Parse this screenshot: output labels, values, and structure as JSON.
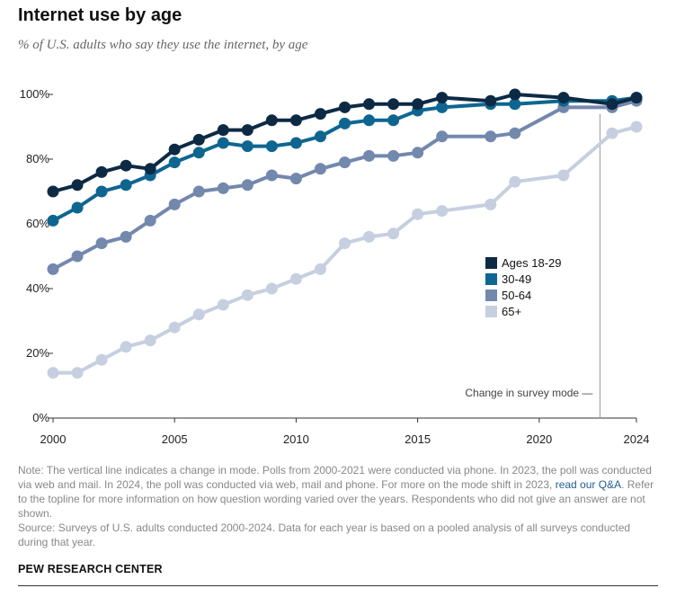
{
  "title": "Internet use by age",
  "subtitle": "% of U.S. adults who say they use the internet, by age",
  "note": {
    "text_before_link": "Note: The vertical line indicates a change in mode. Polls from 2000-2021 were conducted via phone. In 2023, the poll was conducted via web and mail. In 2024, the poll was conducted via web, mail and phone. For more on the mode shift in 2023,",
    "link_text": "read our Q&A",
    "text_after_link": ". Refer to the topline for more information on how question wording varied over the years. Respondents who did not give an answer are not shown."
  },
  "source": "Source: Surveys of U.S. adults conducted 2000-2024. Data for each year is based on a pooled analysis of all surveys conducted during that year.",
  "brand": "PEW RESEARCH CENTER",
  "chart_data": {
    "type": "line",
    "title": "Internet use by age",
    "subtitle": "% of U.S. adults who say they use the internet, by age",
    "xlabel": "",
    "ylabel": "",
    "xlim": [
      2000,
      2024
    ],
    "ylim": [
      0,
      100
    ],
    "x_ticks": [
      2000,
      2005,
      2010,
      2015,
      2020,
      2024
    ],
    "y_ticks": [
      0,
      20,
      40,
      60,
      80,
      100
    ],
    "y_tick_labels": [
      "0%",
      "20%",
      "40%",
      "60%",
      "80%",
      "100%"
    ],
    "grid": false,
    "legend_position": "right",
    "annotation": {
      "label": "Change in survey mode",
      "x": 2022.5
    },
    "series": [
      {
        "name": "Ages 18-29",
        "color": "#0d2a45",
        "points": [
          [
            2000,
            70
          ],
          [
            2001,
            72
          ],
          [
            2002,
            76
          ],
          [
            2003,
            78
          ],
          [
            2004,
            77
          ],
          [
            2005,
            83
          ],
          [
            2006,
            86
          ],
          [
            2007,
            89
          ],
          [
            2008,
            89
          ],
          [
            2009,
            92
          ],
          [
            2010,
            92
          ],
          [
            2011,
            94
          ],
          [
            2012,
            96
          ],
          [
            2013,
            97
          ],
          [
            2014,
            97
          ],
          [
            2015,
            97
          ],
          [
            2016,
            99
          ],
          [
            2018,
            98
          ],
          [
            2019,
            100
          ],
          [
            2021,
            99
          ],
          [
            2023,
            97
          ],
          [
            2024,
            99
          ]
        ]
      },
      {
        "name": "30-49",
        "color": "#0e6690",
        "points": [
          [
            2000,
            61
          ],
          [
            2001,
            65
          ],
          [
            2002,
            70
          ],
          [
            2003,
            72
          ],
          [
            2004,
            75
          ],
          [
            2005,
            79
          ],
          [
            2006,
            82
          ],
          [
            2007,
            85
          ],
          [
            2008,
            84
          ],
          [
            2009,
            84
          ],
          [
            2010,
            85
          ],
          [
            2011,
            87
          ],
          [
            2012,
            91
          ],
          [
            2013,
            92
          ],
          [
            2014,
            92
          ],
          [
            2015,
            95
          ],
          [
            2016,
            96
          ],
          [
            2018,
            97
          ],
          [
            2019,
            97
          ],
          [
            2021,
            98
          ],
          [
            2023,
            98
          ],
          [
            2024,
            99
          ]
        ]
      },
      {
        "name": "50-64",
        "color": "#7388ad",
        "points": [
          [
            2000,
            46
          ],
          [
            2001,
            50
          ],
          [
            2002,
            54
          ],
          [
            2003,
            56
          ],
          [
            2004,
            61
          ],
          [
            2005,
            66
          ],
          [
            2006,
            70
          ],
          [
            2007,
            71
          ],
          [
            2008,
            72
          ],
          [
            2009,
            75
          ],
          [
            2010,
            74
          ],
          [
            2011,
            77
          ],
          [
            2012,
            79
          ],
          [
            2013,
            81
          ],
          [
            2014,
            81
          ],
          [
            2015,
            82
          ],
          [
            2016,
            87
          ],
          [
            2018,
            87
          ],
          [
            2019,
            88
          ],
          [
            2021,
            96
          ],
          [
            2023,
            96
          ],
          [
            2024,
            98
          ]
        ]
      },
      {
        "name": "65+",
        "color": "#c6cfe0",
        "points": [
          [
            2000,
            14
          ],
          [
            2001,
            14
          ],
          [
            2002,
            18
          ],
          [
            2003,
            22
          ],
          [
            2004,
            24
          ],
          [
            2005,
            28
          ],
          [
            2006,
            32
          ],
          [
            2007,
            35
          ],
          [
            2008,
            38
          ],
          [
            2009,
            40
          ],
          [
            2010,
            43
          ],
          [
            2011,
            46
          ],
          [
            2012,
            54
          ],
          [
            2013,
            56
          ],
          [
            2014,
            57
          ],
          [
            2015,
            63
          ],
          [
            2016,
            64
          ],
          [
            2018,
            66
          ],
          [
            2019,
            73
          ],
          [
            2021,
            75
          ],
          [
            2023,
            88
          ],
          [
            2024,
            90
          ]
        ]
      }
    ]
  }
}
